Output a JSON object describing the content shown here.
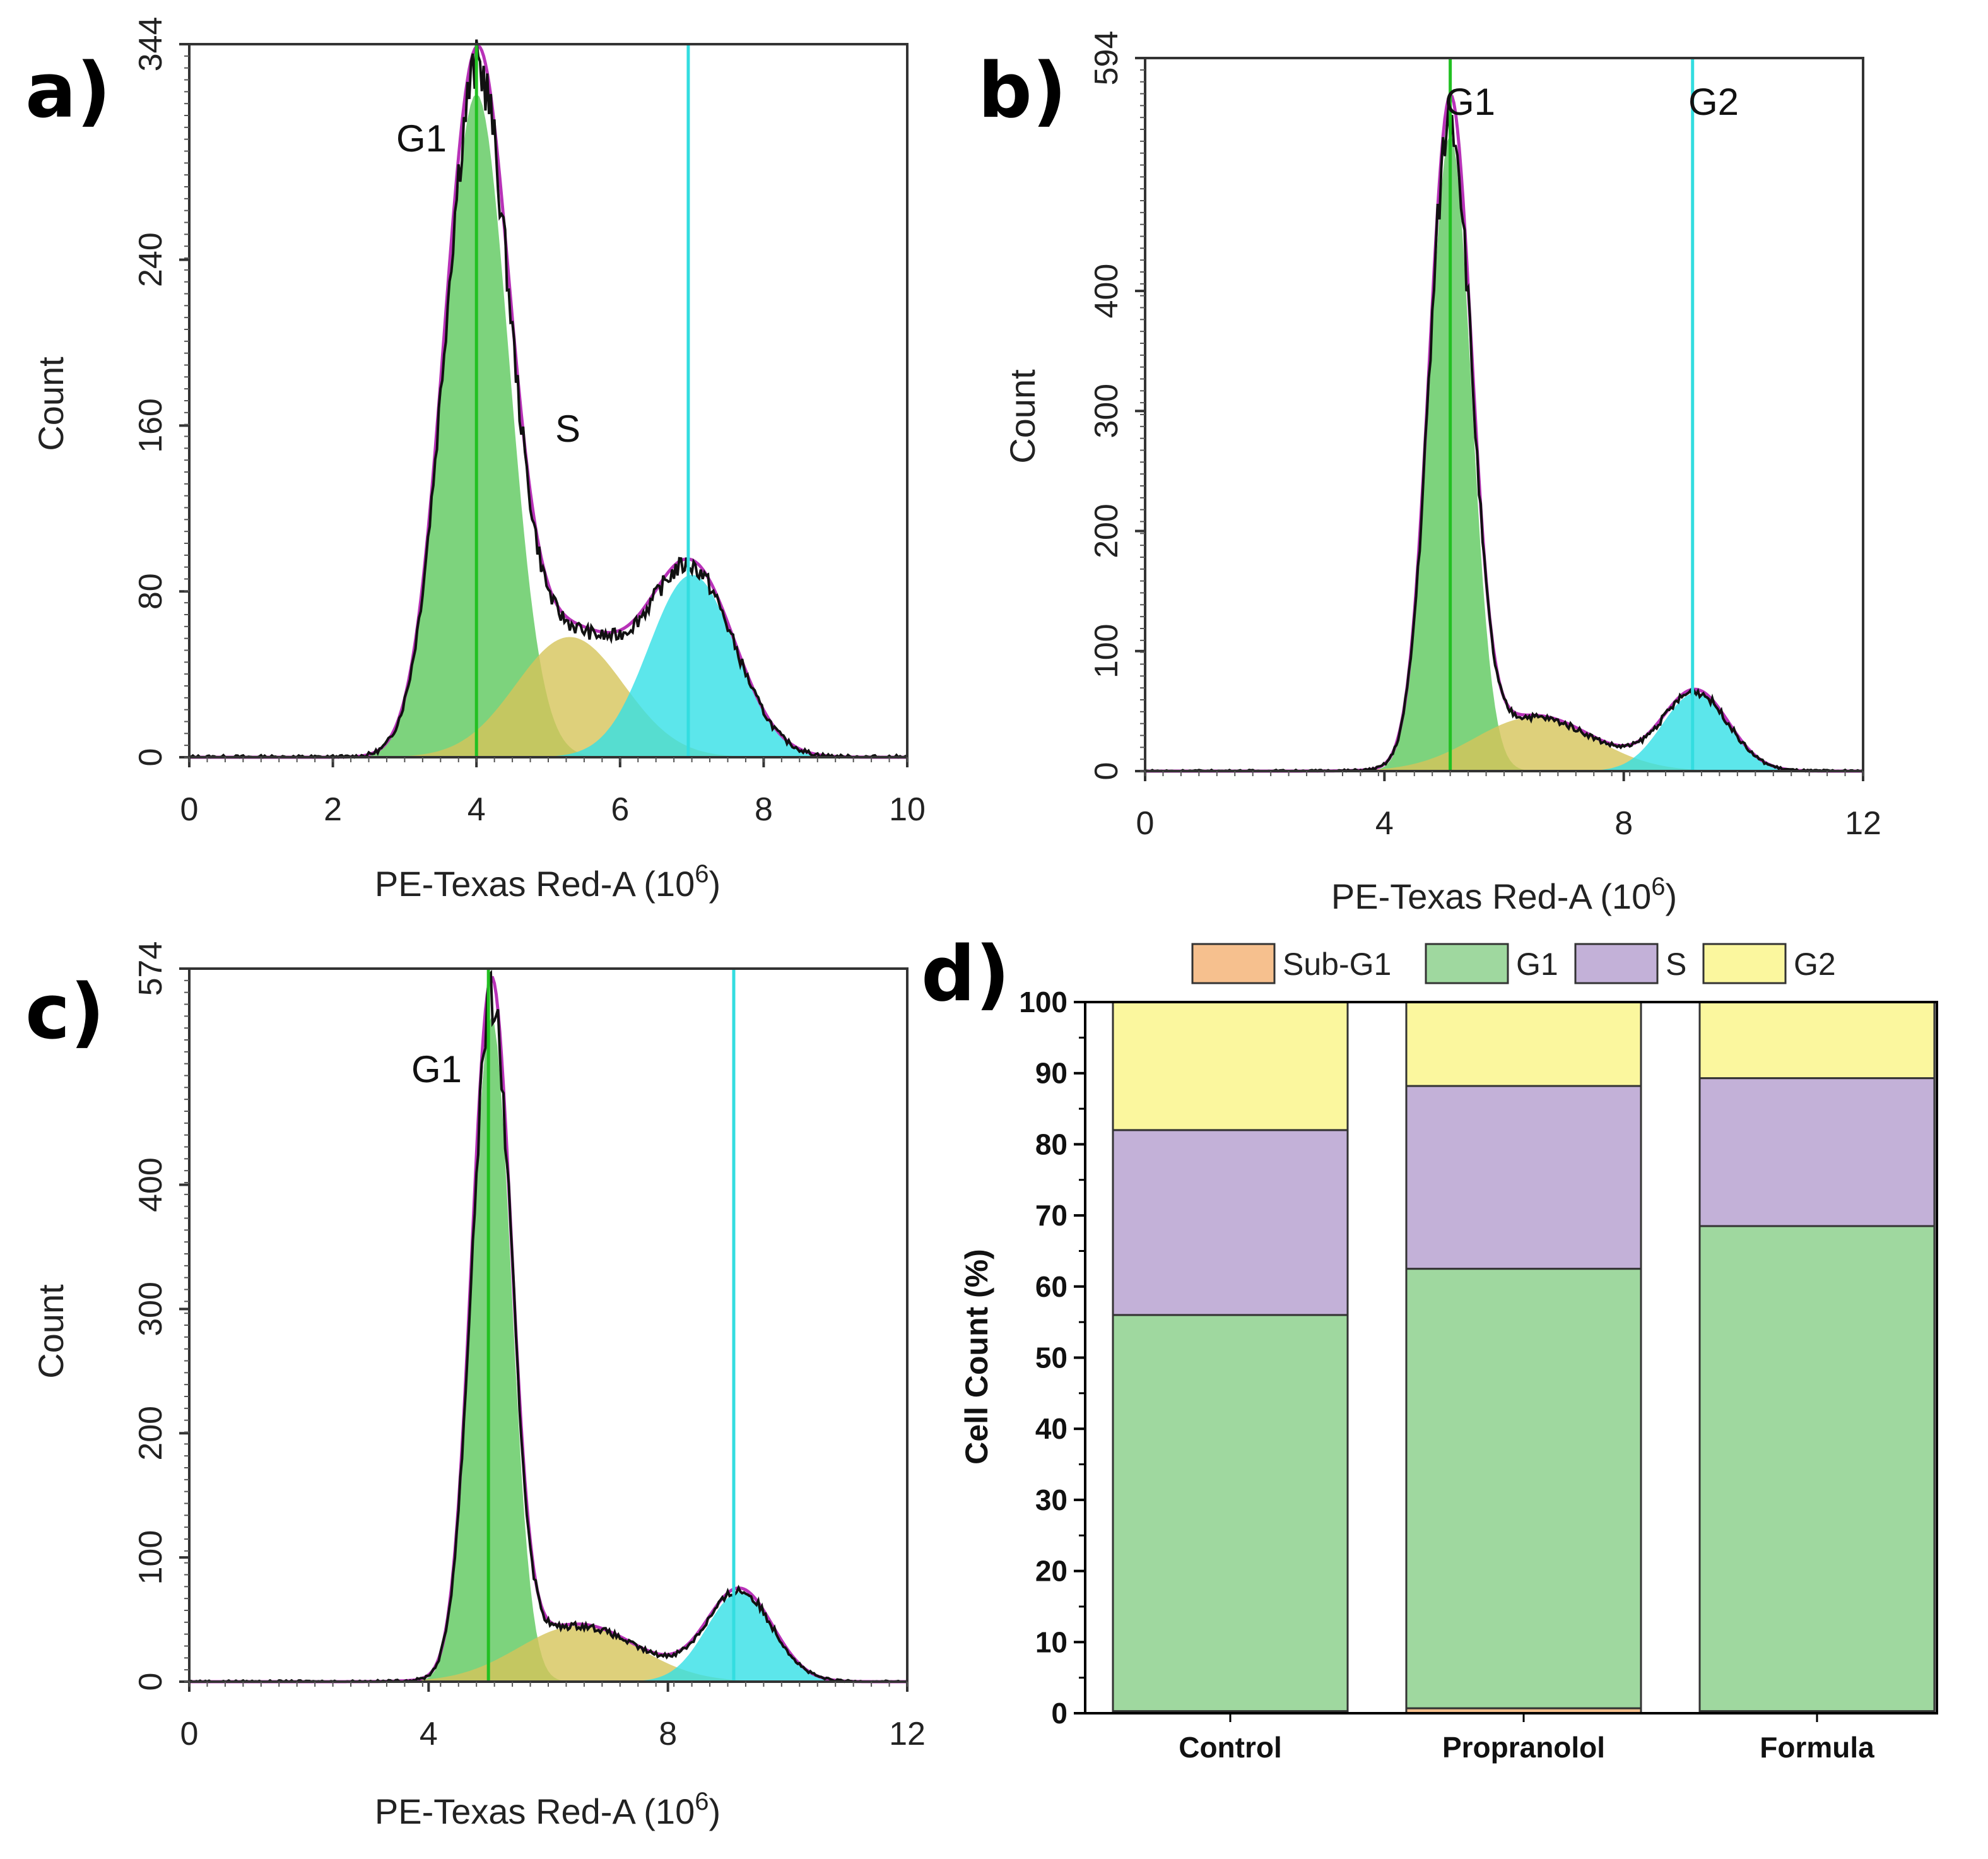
{
  "chart_data": [
    {
      "panel": "a)",
      "type": "area",
      "title": "",
      "xlabel_main": "PE-Texas Red-A  (10",
      "xlabel_exp": "6",
      "xlabel_close": ")",
      "ylabel": "Count",
      "xlim": [
        0,
        10
      ],
      "ylim": [
        0,
        344
      ],
      "xticks": [
        "0",
        "2",
        "4",
        "6",
        "8",
        "10"
      ],
      "yticks": [
        "0",
        "80",
        "160",
        "240",
        "344"
      ],
      "annotations": [
        "G1",
        "S"
      ],
      "gate_lines": [
        {
          "name": "G1",
          "x": 4.0,
          "color": "#22c022"
        },
        {
          "name": "G2",
          "x": 6.95,
          "color": "#33dde0"
        }
      ],
      "series": [
        {
          "name": "G1 fit",
          "color": "#5cc85c",
          "mu": 4.0,
          "sigma": 0.45,
          "amp": 320
        },
        {
          "name": "S fit",
          "color": "#d6c45a",
          "mu": 5.3,
          "sigma": 0.75,
          "amp": 58
        },
        {
          "name": "G2 fit",
          "color": "#33e0e6",
          "mu": 7.0,
          "sigma": 0.6,
          "amp": 88
        }
      ]
    },
    {
      "panel": "b)",
      "type": "area",
      "title": "",
      "xlabel_main": "PE-Texas Red-A  (10",
      "xlabel_exp": "6",
      "xlabel_close": ")",
      "ylabel": "Count",
      "xlim": [
        0,
        12
      ],
      "ylim": [
        0,
        594
      ],
      "xticks": [
        "0",
        "4",
        "8",
        "12"
      ],
      "yticks": [
        "0",
        "100",
        "200",
        "300",
        "400",
        "594"
      ],
      "annotations": [
        "G1",
        "G2"
      ],
      "gate_lines": [
        {
          "name": "G1",
          "x": 5.1,
          "color": "#22c022"
        },
        {
          "name": "G2",
          "x": 9.15,
          "color": "#33dde0"
        }
      ],
      "series": [
        {
          "name": "G1 fit",
          "color": "#5cc85c",
          "mu": 5.1,
          "sigma": 0.35,
          "amp": 530
        },
        {
          "name": "S fit",
          "color": "#d6c45a",
          "mu": 6.5,
          "sigma": 1.0,
          "amp": 45
        },
        {
          "name": "G2 fit",
          "color": "#33e0e6",
          "mu": 9.2,
          "sigma": 0.55,
          "amp": 65
        }
      ]
    },
    {
      "panel": "c)",
      "type": "area",
      "title": "",
      "xlabel_main": "PE-Texas Red-A  (10",
      "xlabel_exp": "6",
      "xlabel_close": ")",
      "ylabel": "Count",
      "xlim": [
        0,
        12
      ],
      "ylim": [
        0,
        574
      ],
      "xticks": [
        "0",
        "4",
        "8",
        "12"
      ],
      "yticks": [
        "0",
        "100",
        "200",
        "300",
        "400",
        "574"
      ],
      "annotations": [
        "G1"
      ],
      "gate_lines": [
        {
          "name": "G1",
          "x": 5.0,
          "color": "#22c022"
        },
        {
          "name": "G2",
          "x": 9.1,
          "color": "#33dde0"
        }
      ],
      "series": [
        {
          "name": "G1 fit",
          "color": "#5cc85c",
          "mu": 5.05,
          "sigma": 0.33,
          "amp": 535
        },
        {
          "name": "S fit",
          "color": "#d6c45a",
          "mu": 6.5,
          "sigma": 1.0,
          "amp": 45
        },
        {
          "name": "G2 fit",
          "color": "#33e0e6",
          "mu": 9.2,
          "sigma": 0.55,
          "amp": 72
        }
      ]
    },
    {
      "panel": "d)",
      "type": "bar",
      "stacked": true,
      "title": "",
      "xlabel": "",
      "ylabel": "Cell Count (%)",
      "ylim": [
        0,
        100
      ],
      "yticks": [
        "0",
        "10",
        "20",
        "30",
        "40",
        "50",
        "60",
        "70",
        "80",
        "90",
        "100"
      ],
      "categories": [
        "Control",
        "Propranolol",
        "Formula"
      ],
      "legend": [
        "Sub-G1",
        "G1",
        "S",
        "G2"
      ],
      "legend_position": "top",
      "series": [
        {
          "name": "Sub-G1",
          "color": "#f6c08e",
          "values": [
            0.3,
            0.7,
            0.3
          ]
        },
        {
          "name": "G1",
          "color": "#9fd89f",
          "values": [
            55.7,
            61.8,
            68.2
          ]
        },
        {
          "name": "S",
          "color": "#c3b1d8",
          "values": [
            26.0,
            25.7,
            20.8
          ]
        },
        {
          "name": "G2",
          "color": "#fbf79e",
          "values": [
            18.0,
            11.8,
            10.7
          ]
        }
      ]
    }
  ]
}
